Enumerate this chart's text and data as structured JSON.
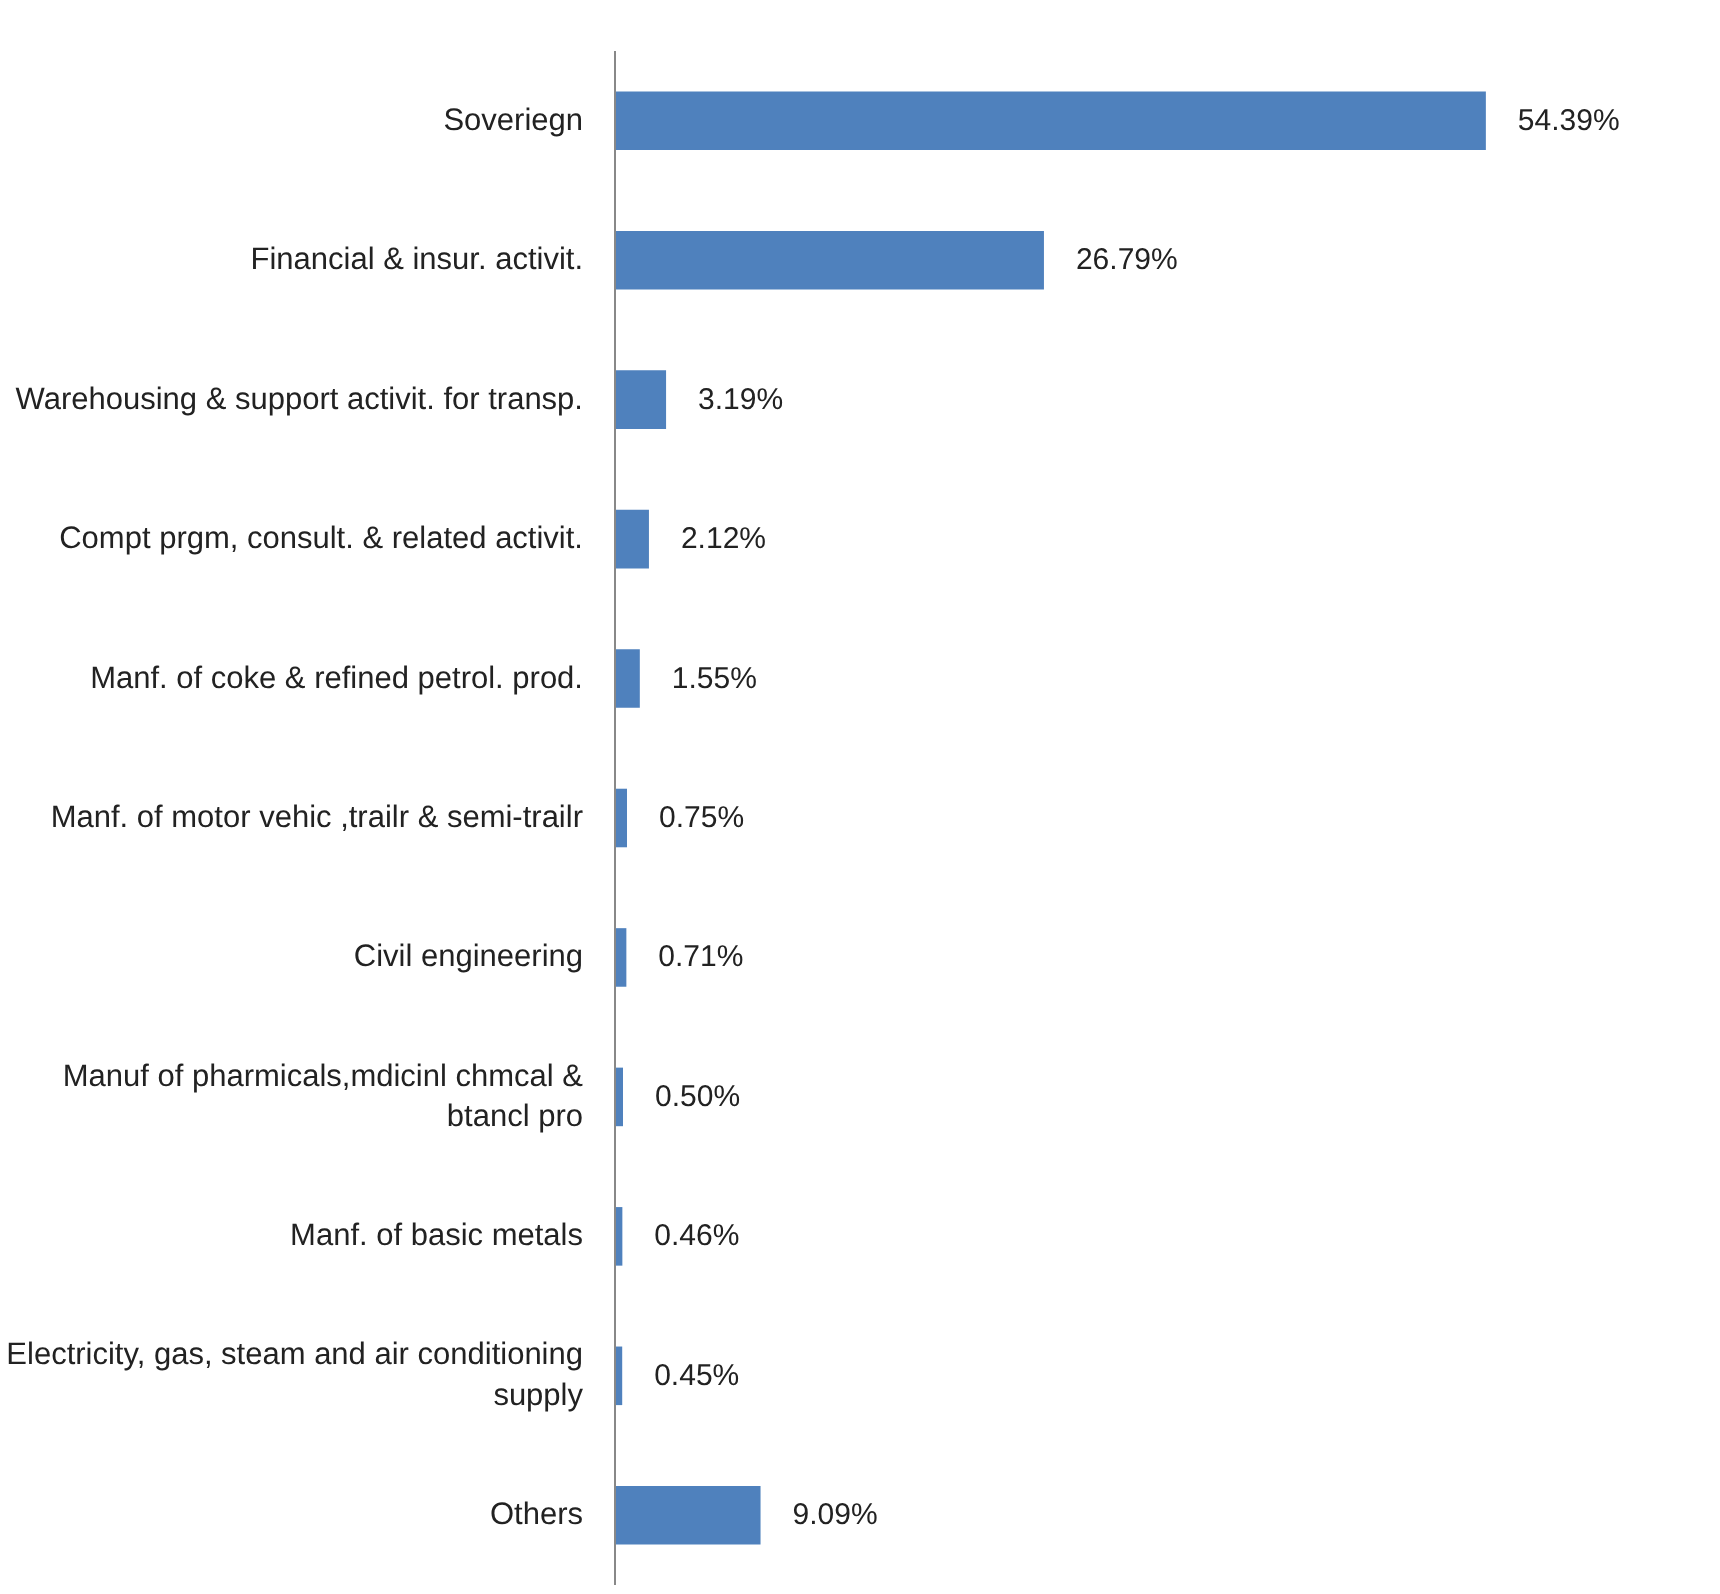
{
  "chart_data": {
    "type": "bar",
    "orientation": "horizontal",
    "categories": [
      "Soveriegn",
      "Financial & insur. activit.",
      "Warehousing & support activit. for transp.",
      "Compt prgm, consult. & related activit.",
      "Manf. of coke & refined petrol. prod.",
      "Manf. of motor vehic ,trailr & semi-trailr",
      "Civil engineering",
      "Manuf of pharmicals,mdicinl chmcal &\nbtancl pro",
      "Manf. of basic metals",
      "Electricity, gas, steam and air conditioning\nsupply",
      "Others"
    ],
    "values": [
      54.39,
      26.79,
      3.19,
      2.12,
      1.55,
      0.75,
      0.71,
      0.5,
      0.46,
      0.45,
      9.09
    ],
    "value_labels": [
      "54.39%",
      "26.79%",
      "3.19%",
      "2.12%",
      "1.55%",
      "0.75%",
      "0.71%",
      "0.50%",
      "0.46%",
      "0.45%",
      "9.09%"
    ],
    "color": "#4f81bd",
    "tick_labels": "y",
    "grid": false
  }
}
